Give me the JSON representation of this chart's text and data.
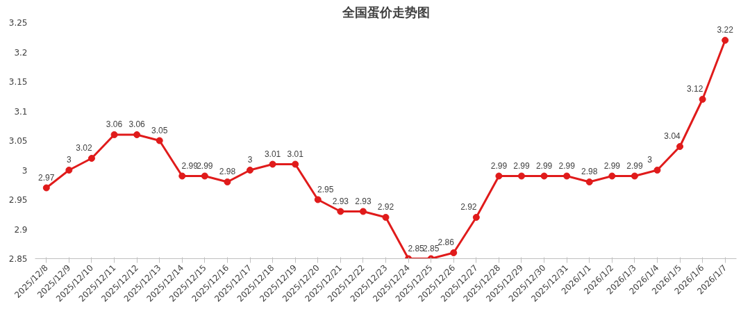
{
  "chart_data": {
    "type": "line",
    "title": "全国蛋价走势图",
    "categories": [
      "2025/12/8",
      "2025/12/9",
      "2025/12/10",
      "2025/12/11",
      "2025/12/12",
      "2025/12/13",
      "2025/12/14",
      "2025/12/15",
      "2025/12/16",
      "2025/12/17",
      "2025/12/18",
      "2025/12/19",
      "2025/12/20",
      "2025/12/21",
      "2025/12/22",
      "2025/12/23",
      "2025/12/24",
      "2025/12/25",
      "2025/12/26",
      "2025/12/27",
      "2025/12/28",
      "2025/12/29",
      "2025/12/30",
      "2025/12/31",
      "2026/1/1",
      "2026/1/2",
      "2026/1/3",
      "2026/1/4",
      "2026/1/5",
      "2026/1/6",
      "2026/1/7"
    ],
    "series": [
      {
        "color": "#e01b1b",
        "values": [
          2.97,
          3,
          3.02,
          3.06,
          3.06,
          3.05,
          2.99,
          2.99,
          2.98,
          3,
          3.01,
          3.01,
          2.95,
          2.93,
          2.93,
          2.92,
          2.85,
          2.85,
          2.86,
          2.92,
          2.99,
          2.99,
          2.99,
          2.99,
          2.98,
          2.99,
          2.99,
          3,
          3.04,
          3.12,
          3.22
        ]
      }
    ],
    "ylim": [
      2.85,
      3.25
    ],
    "yticks": [
      2.85,
      2.9,
      2.95,
      3,
      3.05,
      3.1,
      3.15,
      3.2,
      3.25
    ],
    "marker": "circle",
    "line_style": "solid",
    "data_labels": true,
    "grid": false
  }
}
